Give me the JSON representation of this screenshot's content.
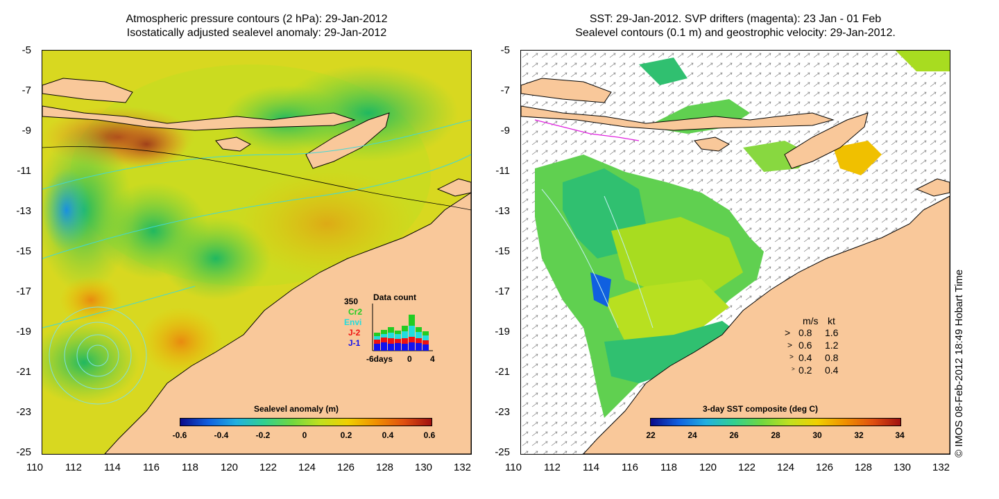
{
  "left_panel": {
    "title_line1": "Atmospheric pressure contours (2 hPa): 29-Jan-2012",
    "title_line2": "Isostatically adjusted sealevel anomaly: 29-Jan-2012",
    "colorbar_title": "Sealevel anomaly (m)",
    "colorbar_ticks": [
      "-0.6",
      "-0.4",
      "-0.2",
      "0",
      "0.2",
      "0.4",
      "0.6"
    ],
    "data_count": {
      "title": "Data count",
      "max_label": "350",
      "legend": [
        {
          "label": "Cr2",
          "color": "#22cc22"
        },
        {
          "label": "Envi",
          "color": "#22dddd"
        },
        {
          "label": "J-2",
          "color": "#ee1111"
        },
        {
          "label": "J-1",
          "color": "#1111ee"
        }
      ],
      "x_labels": [
        "-6days",
        "0",
        "4"
      ]
    }
  },
  "right_panel": {
    "title_line1": "SST: 29-Jan-2012. SVP drifters (magenta): 23 Jan - 01 Feb",
    "title_line2": "Sealevel contours (0.1 m) and geostrophic velocity: 29-Jan-2012.",
    "colorbar_title": "3-day SST composite (deg C)",
    "colorbar_ticks": [
      "22",
      "24",
      "26",
      "28",
      "30",
      "32",
      "34"
    ],
    "velocity_legend": {
      "header_ms": "m/s",
      "header_kt": "kt",
      "rows": [
        {
          "ms": "0.8",
          "kt": "1.6"
        },
        {
          "ms": "0.6",
          "kt": "1.2"
        },
        {
          "ms": "0.4",
          "kt": "0.8"
        },
        {
          "ms": "0.2",
          "kt": "0.4"
        }
      ]
    }
  },
  "axes": {
    "lon_labels": [
      "110",
      "112",
      "114",
      "116",
      "118",
      "120",
      "122",
      "124",
      "126",
      "128",
      "130",
      "132"
    ],
    "lat_labels": [
      "-5",
      "-7",
      "-9",
      "-11",
      "-13",
      "-15",
      "-17",
      "-19",
      "-21",
      "-23",
      "-25"
    ]
  },
  "credit": "© IMOS 08-Feb-2012 18:49 Hobart Time",
  "colors": {
    "land": "#f9c89a",
    "sla_colormap": [
      "#0a0a8a",
      "#1060e0",
      "#20b0e0",
      "#30d090",
      "#70d840",
      "#c0e020",
      "#f0d000",
      "#f09000",
      "#e05010",
      "#a01010"
    ],
    "sst_colormap": [
      "#0a0a8a",
      "#1060e0",
      "#20b0e0",
      "#30d090",
      "#70d840",
      "#c0e020",
      "#f0d000",
      "#f09000",
      "#e05010",
      "#a01010"
    ]
  }
}
